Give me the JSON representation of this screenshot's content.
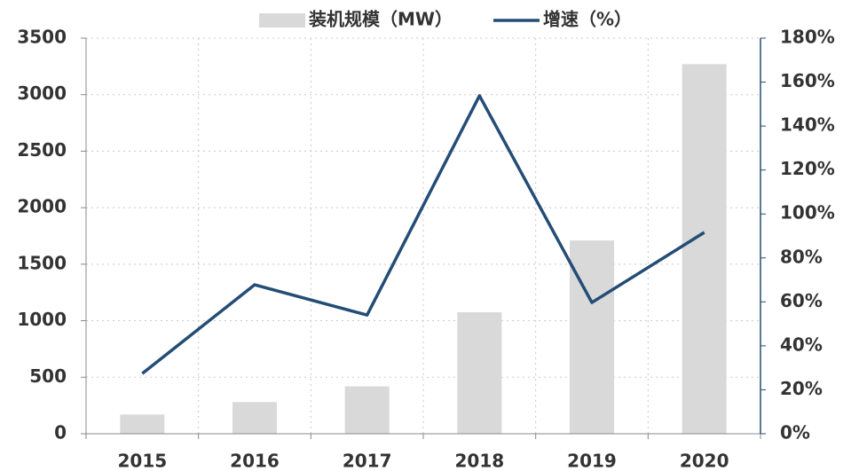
{
  "chart_data": {
    "type": "bar_line",
    "categories": [
      "2015",
      "2016",
      "2017",
      "2018",
      "2019",
      "2020"
    ],
    "series": [
      {
        "name": "装机规模（MW）",
        "type": "bar",
        "color": "#d9d9d9",
        "values": [
          170,
          280,
          420,
          1075,
          1710,
          3270
        ]
      },
      {
        "name": "增速（%）",
        "type": "line",
        "axis": "y2",
        "color": "#244d76",
        "values": [
          27.4,
          67.8,
          54,
          153.8,
          59.7,
          91.6
        ]
      }
    ],
    "ylim": [
      0,
      3500
    ],
    "yticks": [
      0,
      500,
      1000,
      1500,
      2000,
      2500,
      3000,
      3500
    ],
    "y2lim": [
      0,
      180
    ],
    "y2ticks": [
      {
        "value": 0,
        "label": "0%"
      },
      {
        "value": 20,
        "label": "20%"
      },
      {
        "value": 40,
        "label": "40%"
      },
      {
        "value": 60,
        "label": "60%"
      },
      {
        "value": 80,
        "label": "80%"
      },
      {
        "value": 100,
        "label": "100%"
      },
      {
        "value": 120,
        "label": "120%"
      },
      {
        "value": 140,
        "label": "140%"
      },
      {
        "value": 160,
        "label": "160%"
      },
      {
        "value": 180,
        "label": "180%"
      }
    ],
    "grid": true,
    "legend": "top"
  }
}
